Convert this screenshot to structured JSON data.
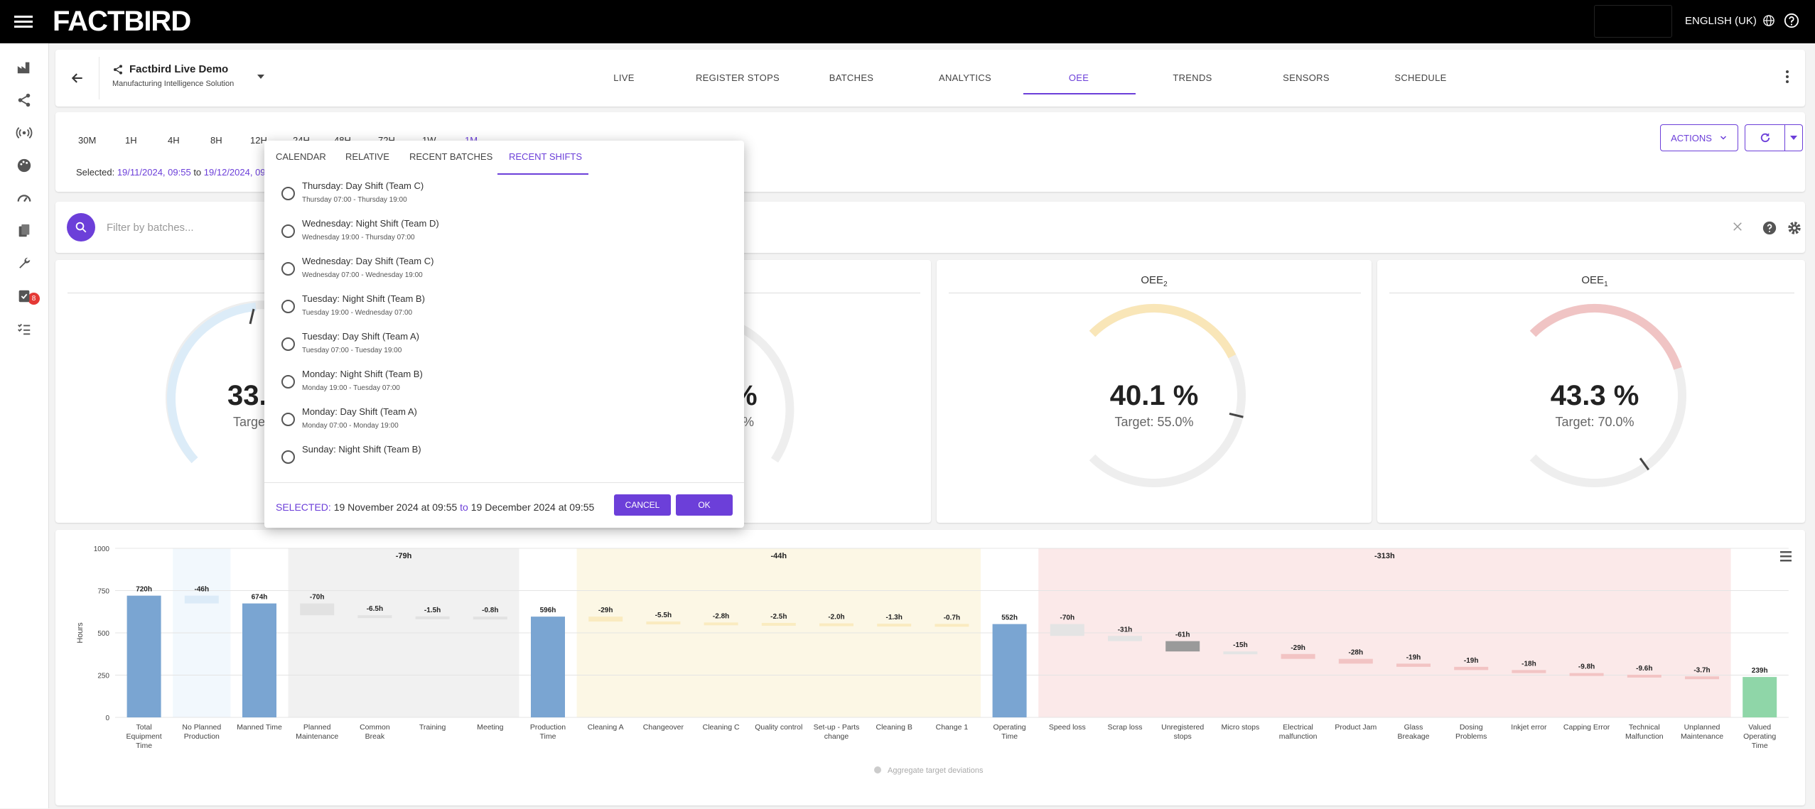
{
  "header": {
    "logo": "FACTBIRD",
    "language": "ENGLISH (UK)"
  },
  "company": {
    "name": "Factbird Live Demo",
    "subtitle": "Manufacturing Intelligence Solution"
  },
  "tabs": [
    "LIVE",
    "REGISTER STOPS",
    "BATCHES",
    "ANALYTICS",
    "OEE",
    "TRENDS",
    "SENSORS",
    "SCHEDULE"
  ],
  "active_tab": "OEE",
  "ranges": [
    "30M",
    "1H",
    "4H",
    "8H",
    "12H",
    "24H",
    "48H",
    "72H",
    "1W",
    "1M"
  ],
  "active_range": "1M",
  "selected": {
    "label": "Selected:",
    "from": "19/11/2024, 09:55",
    "to_word": "to",
    "to": "19/12/2024, 09:55"
  },
  "actions_label": "ACTIONS",
  "search": {
    "placeholder": "Filter by batches..."
  },
  "sidebar_badge": "8",
  "gauges": [
    {
      "title": "OEE",
      "sub": "2",
      "value": "40.1 %",
      "target": "Target: 55.0%",
      "fraction": 0.401,
      "target_fraction": 0.55,
      "color": "#f9e6b8"
    },
    {
      "title": "OEE",
      "sub": "1",
      "value": "43.3 %",
      "target": "Target: 70.0%",
      "fraction": 0.433,
      "target_fraction": 0.7,
      "color": "#f0c4c4"
    }
  ],
  "hidden_gauge_1": {
    "value": "33.",
    "target": "Targe",
    "color": "#dcecf8"
  },
  "hidden_gauge_2": {
    "value": "%",
    "target": "%"
  },
  "popup": {
    "tabs": [
      "CALENDAR",
      "RELATIVE",
      "RECENT BATCHES",
      "RECENT SHIFTS"
    ],
    "active_tab": "RECENT SHIFTS",
    "shifts": [
      {
        "title": "Thursday: Day Shift (Team C)",
        "time": "Thursday 07:00 - Thursday 19:00"
      },
      {
        "title": "Wednesday: Night Shift (Team D)",
        "time": "Wednesday 19:00 - Thursday 07:00"
      },
      {
        "title": "Wednesday: Day Shift (Team C)",
        "time": "Wednesday 07:00 - Wednesday 19:00"
      },
      {
        "title": "Tuesday: Night Shift (Team B)",
        "time": "Tuesday 19:00 - Wednesday 07:00"
      },
      {
        "title": "Tuesday: Day Shift (Team A)",
        "time": "Tuesday 07:00 - Tuesday 19:00"
      },
      {
        "title": "Monday: Night Shift (Team B)",
        "time": "Monday 19:00 - Tuesday 07:00"
      },
      {
        "title": "Monday: Day Shift (Team A)",
        "time": "Monday 07:00 - Monday 19:00"
      },
      {
        "title": "Sunday: Night Shift (Team B)",
        "time": ""
      }
    ],
    "selected_label": "SELECTED:",
    "selected_from": "19 November 2024 at 09:55",
    "selected_to_word": "to",
    "selected_to": "19 December 2024 at 09:55",
    "cancel": "CANCEL",
    "ok": "OK"
  },
  "chart_data": {
    "type": "bar",
    "ylabel": "Hours",
    "ylim": [
      0,
      1000
    ],
    "yticks": [
      0,
      250,
      500,
      750,
      1000
    ],
    "legend": "Aggregate target deviations",
    "groups": [
      {
        "label": "-79h",
        "from": 3,
        "to": 6,
        "color": "#f1f1f1"
      },
      {
        "label": "-44h",
        "from": 8,
        "to": 14,
        "color": "#fcf7e5"
      },
      {
        "label": "-313h",
        "from": 16,
        "to": 27,
        "color": "#fbe9e9"
      }
    ],
    "bars": [
      {
        "name": "Total\nEquipment\nTime",
        "label": "720h",
        "value": 720,
        "kind": "total"
      },
      {
        "name": "No Planned\nProduction",
        "label": "-46h",
        "value": -46,
        "kind": "loss-blue"
      },
      {
        "name": "Manned Time",
        "label": "674h",
        "value": 674,
        "kind": "total"
      },
      {
        "name": "Planned\nMaintenance",
        "label": "-70h",
        "value": -70,
        "kind": "loss-grey"
      },
      {
        "name": "Common\nBreak",
        "label": "-6.5h",
        "value": -6.5,
        "kind": "loss-grey"
      },
      {
        "name": "Training",
        "label": "-1.5h",
        "value": -1.5,
        "kind": "loss-grey"
      },
      {
        "name": "Meeting",
        "label": "-0.8h",
        "value": -0.8,
        "kind": "loss-grey"
      },
      {
        "name": "Production\nTime",
        "label": "596h",
        "value": 596,
        "kind": "total"
      },
      {
        "name": "Cleaning A",
        "label": "-29h",
        "value": -29,
        "kind": "loss-yellow"
      },
      {
        "name": "Changeover",
        "label": "-5.5h",
        "value": -5.5,
        "kind": "loss-yellow"
      },
      {
        "name": "Cleaning C",
        "label": "-2.8h",
        "value": -2.8,
        "kind": "loss-yellow"
      },
      {
        "name": "Quality control",
        "label": "-2.5h",
        "value": -2.5,
        "kind": "loss-yellow"
      },
      {
        "name": "Set-up - Parts\nchange",
        "label": "-2.0h",
        "value": -2.0,
        "kind": "loss-yellow"
      },
      {
        "name": "Cleaning B",
        "label": "-1.3h",
        "value": -1.3,
        "kind": "loss-yellow"
      },
      {
        "name": "Change 1",
        "label": "-0.7h",
        "value": -0.7,
        "kind": "loss-yellow"
      },
      {
        "name": "Operating\nTime",
        "label": "552h",
        "value": 552,
        "kind": "total"
      },
      {
        "name": "Speed loss",
        "label": "-70h",
        "value": -70,
        "kind": "loss-lightgrey"
      },
      {
        "name": "Scrap loss",
        "label": "-31h",
        "value": -31,
        "kind": "loss-lightgrey"
      },
      {
        "name": "Unregistered\nstops",
        "label": "-61h",
        "value": -61,
        "kind": "loss-darkgrey"
      },
      {
        "name": "Micro stops",
        "label": "-15h",
        "value": -15,
        "kind": "loss-lightgrey"
      },
      {
        "name": "Electrical\nmalfunction",
        "label": "-29h",
        "value": -29,
        "kind": "loss-pink"
      },
      {
        "name": "Product Jam",
        "label": "-28h",
        "value": -28,
        "kind": "loss-pink"
      },
      {
        "name": "Glass\nBreakage",
        "label": "-19h",
        "value": -19,
        "kind": "loss-pink"
      },
      {
        "name": "Dosing\nProblems",
        "label": "-19h",
        "value": -19,
        "kind": "loss-pink"
      },
      {
        "name": "Inkjet error",
        "label": "-18h",
        "value": -18,
        "kind": "loss-pink"
      },
      {
        "name": "Capping Error",
        "label": "-9.8h",
        "value": -9.8,
        "kind": "loss-pink"
      },
      {
        "name": "Technical\nMalfunction",
        "label": "-9.6h",
        "value": -9.6,
        "kind": "loss-pink"
      },
      {
        "name": "Unplanned\nMaintenance",
        "label": "-3.7h",
        "value": -3.7,
        "kind": "loss-pink"
      },
      {
        "name": "Valued\nOperating\nTime",
        "label": "239h",
        "value": 239,
        "kind": "final"
      }
    ]
  }
}
